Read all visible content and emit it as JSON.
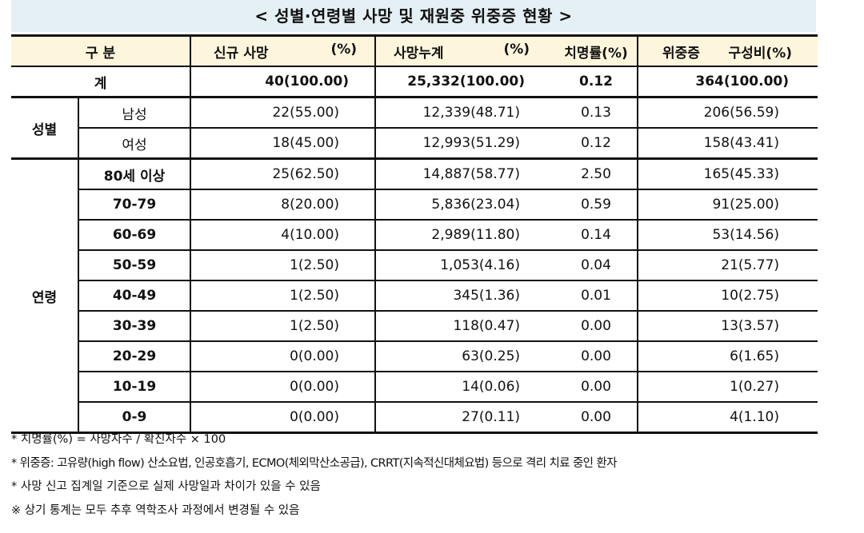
{
  "title": "< 성별·연령별 사망 및 재원중 위중증 현황 >",
  "header": {
    "category": "구 분",
    "new_death": "신규 사망",
    "new_death_pct": "(%)",
    "cum_death": "사망누계",
    "cum_death_pct": "(%)",
    "fatality": "치명률(%)",
    "severe": "위중증",
    "severe_ratio": "구성비(%)"
  },
  "total": {
    "label": "계",
    "new_death": "40(100.00)",
    "cum_death": "25,332(100.00)",
    "fatality": "0.12",
    "severe": "364(100.00)"
  },
  "gender": {
    "label": "성별",
    "rows": [
      {
        "label": "남성",
        "new_death": "22(55.00)",
        "cum_death": "12,339(48.71)",
        "fatality": "0.13",
        "severe": "206(56.59)"
      },
      {
        "label": "여성",
        "new_death": "18(45.00)",
        "cum_death": "12,993(51.29)",
        "fatality": "0.12",
        "severe": "158(43.41)"
      }
    ]
  },
  "age": {
    "label": "연령",
    "rows": [
      {
        "label": "80세 이상",
        "new_death": "25(62.50)",
        "cum_death": "14,887(58.77)",
        "fatality": "2.50",
        "severe": "165(45.33)"
      },
      {
        "label": "70-79",
        "new_death": "8(20.00)",
        "cum_death": "5,836(23.04)",
        "fatality": "0.59",
        "severe": "91(25.00)"
      },
      {
        "label": "60-69",
        "new_death": "4(10.00)",
        "cum_death": "2,989(11.80)",
        "fatality": "0.14",
        "severe": "53(14.56)"
      },
      {
        "label": "50-59",
        "new_death": "1(2.50)",
        "cum_death": "1,053(4.16)",
        "fatality": "0.04",
        "severe": "21(5.77)"
      },
      {
        "label": "40-49",
        "new_death": "1(2.50)",
        "cum_death": "345(1.36)",
        "fatality": "0.01",
        "severe": "10(2.75)"
      },
      {
        "label": "30-39",
        "new_death": "1(2.50)",
        "cum_death": "118(0.47)",
        "fatality": "0.00",
        "severe": "13(3.57)"
      },
      {
        "label": "20-29",
        "new_death": "0(0.00)",
        "cum_death": "63(0.25)",
        "fatality": "0.00",
        "severe": "6(1.65)"
      },
      {
        "label": "10-19",
        "new_death": "0(0.00)",
        "cum_death": "14(0.06)",
        "fatality": "0.00",
        "severe": "1(0.27)"
      },
      {
        "label": "0-9",
        "new_death": "0(0.00)",
        "cum_death": "27(0.11)",
        "fatality": "0.00",
        "severe": "4(1.10)"
      }
    ]
  },
  "notes": [
    "* 치명률(%) = 사망자수 / 확진자수 × 100",
    "* 위중증: 고유량(high flow) 산소요법, 인공호흡기, ECMO(체외막산소공급), CRRT(지속적신대체요법) 등으로 격리 치료 중인 환자",
    "* 사망 신고 집계일 기준으로 실제 사망일과 차이가 있을 수 있음",
    "※ 상기 통계는 모두 추후 역학조사 과정에서 변경될 수 있음"
  ]
}
